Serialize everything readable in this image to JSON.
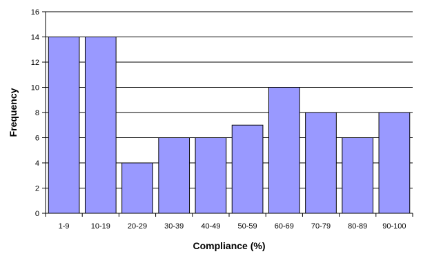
{
  "chart_data": {
    "type": "bar",
    "categories": [
      "1-9",
      "10-19",
      "20-29",
      "30-39",
      "40-49",
      "50-59",
      "60-69",
      "70-79",
      "80-89",
      "90-100"
    ],
    "values": [
      14,
      14,
      4,
      6,
      6,
      7,
      10,
      8,
      6,
      8
    ],
    "title": "",
    "xlabel": "Compliance (%)",
    "ylabel": "Frequency",
    "ylim": [
      0,
      16
    ],
    "yticks": [
      "0",
      "2",
      "4",
      "6",
      "8",
      "10",
      "12",
      "14",
      "16"
    ],
    "grid": true,
    "legend": "none",
    "colors": {
      "bar_fill": "#9999ff",
      "bar_stroke": "#000000",
      "grid": "#000000",
      "axis": "#000000"
    }
  }
}
